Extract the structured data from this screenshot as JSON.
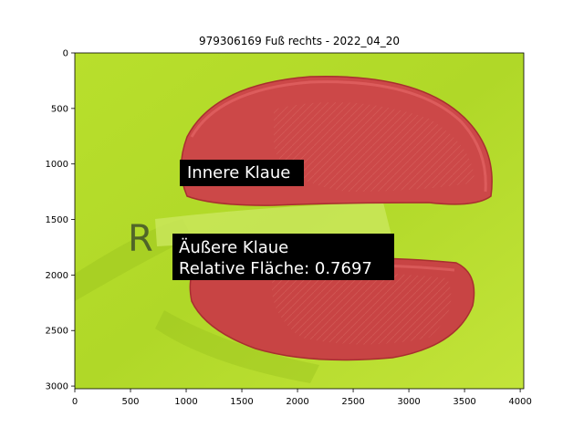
{
  "figure": {
    "title": "979306169 Fuß rechts - 2022_04_20",
    "x_ticks": [
      "0",
      "500",
      "1000",
      "1500",
      "2000",
      "2500",
      "3000",
      "3500",
      "4000"
    ],
    "y_ticks": [
      "0",
      "500",
      "1000",
      "1500",
      "2000",
      "2500",
      "3000"
    ],
    "x_tick_values": [
      0,
      500,
      1000,
      1500,
      2000,
      2500,
      3000,
      3500,
      4000
    ],
    "y_tick_values": [
      0,
      500,
      1000,
      1500,
      2000,
      2500,
      3000
    ],
    "x_range": [
      0,
      4032
    ],
    "y_range": [
      3024,
      0
    ],
    "annotations": {
      "inner": "Innere Klaue",
      "outer_line1": "Äußere Klaue",
      "outer_line2": "Relative Fläche: 0.7697"
    },
    "colors": {
      "background": "#b5dc2a",
      "inner_claw": "#cc4848",
      "outer_claw": "#c84444",
      "label_bg": "#000000",
      "label_text": "#ffffff"
    }
  }
}
